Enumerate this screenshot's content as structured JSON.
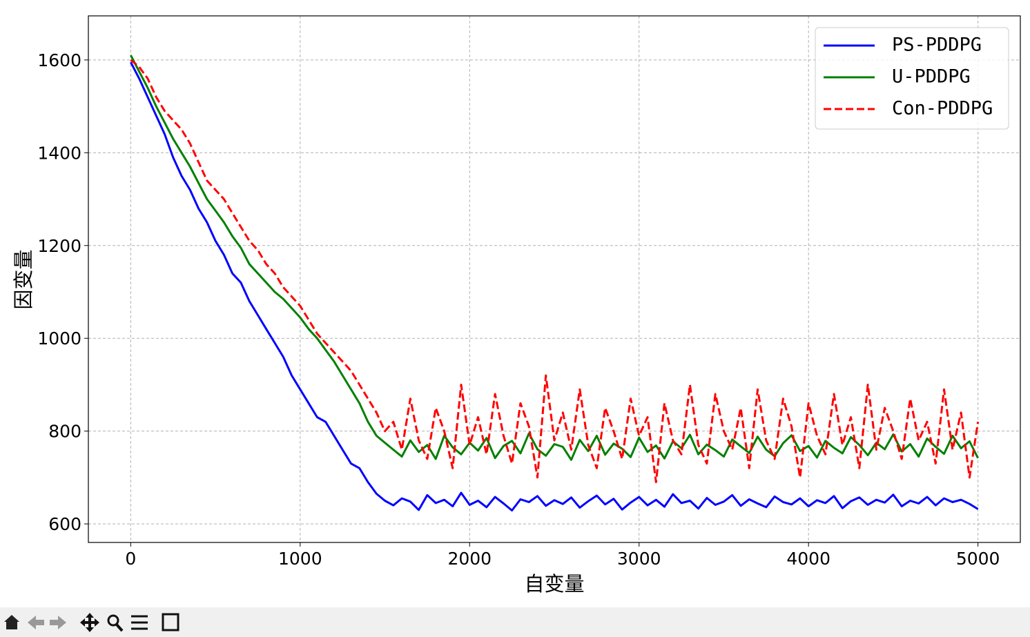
{
  "chart_data": {
    "type": "line",
    "xlabel": "自变量",
    "ylabel": "因变量",
    "x": [
      0,
      50,
      100,
      150,
      200,
      250,
      300,
      350,
      400,
      450,
      500,
      550,
      600,
      650,
      700,
      750,
      800,
      850,
      900,
      950,
      1000,
      1050,
      1100,
      1150,
      1200,
      1250,
      1300,
      1350,
      1400,
      1450,
      1500,
      1550,
      1600,
      1650,
      1700,
      1750,
      1800,
      1850,
      1900,
      1950,
      2000,
      2050,
      2100,
      2150,
      2200,
      2250,
      2300,
      2350,
      2400,
      2450,
      2500,
      2550,
      2600,
      2650,
      2700,
      2750,
      2800,
      2850,
      2900,
      2950,
      3000,
      3050,
      3100,
      3150,
      3200,
      3250,
      3300,
      3350,
      3400,
      3450,
      3500,
      3550,
      3600,
      3650,
      3700,
      3750,
      3800,
      3850,
      3900,
      3950,
      4000,
      4050,
      4100,
      4150,
      4200,
      4250,
      4300,
      4350,
      4400,
      4450,
      4500,
      4550,
      4600,
      4650,
      4700,
      4750,
      4800,
      4850,
      4900,
      4950,
      5000
    ],
    "series": [
      {
        "name": "PS-PDDPG",
        "color": "#0000ff",
        "dash": false,
        "values": [
          1595,
          1560,
          1520,
          1480,
          1440,
          1390,
          1350,
          1320,
          1280,
          1250,
          1210,
          1180,
          1140,
          1120,
          1080,
          1050,
          1020,
          990,
          960,
          920,
          890,
          860,
          830,
          820,
          790,
          760,
          730,
          720,
          690,
          665,
          650,
          640,
          655,
          648,
          630,
          662,
          645,
          652,
          638,
          667,
          641,
          650,
          636,
          658,
          644,
          629,
          653,
          647,
          660,
          639,
          651,
          643,
          657,
          635,
          649,
          661,
          642,
          654,
          631,
          646,
          658,
          640,
          652,
          637,
          664,
          645,
          650,
          633,
          656,
          641,
          648,
          662,
          639,
          653,
          644,
          636,
          659,
          647,
          642,
          655,
          638,
          651,
          645,
          660,
          634,
          649,
          657,
          641,
          652,
          646,
          663,
          638,
          650,
          644,
          658,
          640,
          655,
          647,
          652,
          643,
          632
        ]
      },
      {
        "name": "U-PDDPG",
        "color": "#008000",
        "dash": false,
        "values": [
          1610,
          1575,
          1540,
          1500,
          1465,
          1430,
          1400,
          1370,
          1335,
          1300,
          1275,
          1250,
          1220,
          1195,
          1160,
          1140,
          1120,
          1100,
          1085,
          1065,
          1045,
          1020,
          1000,
          975,
          950,
          920,
          890,
          860,
          820,
          790,
          775,
          760,
          745,
          780,
          755,
          770,
          740,
          790,
          765,
          750,
          775,
          758,
          785,
          742,
          768,
          779,
          752,
          795,
          761,
          747,
          772,
          766,
          738,
          781,
          757,
          790,
          749,
          773,
          762,
          744,
          786,
          755,
          769,
          741,
          778,
          763,
          792,
          750,
          771,
          759,
          745,
          782,
          767,
          753,
          788,
          760,
          746,
          774,
          791,
          757,
          768,
          743,
          779,
          764,
          752,
          787,
          770,
          748,
          775,
          761,
          793,
          756,
          772,
          745,
          784,
          766,
          751,
          790,
          763,
          778,
          742
        ]
      },
      {
        "name": "Con-PDDPG",
        "color": "#ff0000",
        "dash": true,
        "values": [
          1600,
          1585,
          1560,
          1520,
          1490,
          1470,
          1450,
          1420,
          1380,
          1340,
          1320,
          1300,
          1270,
          1240,
          1210,
          1190,
          1160,
          1140,
          1110,
          1090,
          1070,
          1040,
          1010,
          990,
          970,
          950,
          930,
          900,
          870,
          840,
          800,
          820,
          760,
          870,
          780,
          740,
          850,
          800,
          720,
          900,
          770,
          830,
          750,
          880,
          790,
          730,
          860,
          810,
          700,
          920,
          780,
          840,
          760,
          890,
          770,
          720,
          850,
          800,
          740,
          870,
          790,
          830,
          690,
          860,
          780,
          750,
          900,
          770,
          730,
          880,
          800,
          760,
          850,
          720,
          890,
          780,
          740,
          870,
          810,
          700,
          860,
          790,
          750,
          880,
          770,
          830,
          720,
          900,
          760,
          850,
          800,
          740,
          870,
          780,
          820,
          730,
          890,
          760,
          840,
          700,
          820
        ]
      }
    ],
    "xlim": [
      -250,
      5250
    ],
    "ylim": [
      560,
      1695
    ],
    "xticks": [
      0,
      1000,
      2000,
      3000,
      4000,
      5000
    ],
    "yticks": [
      600,
      800,
      1000,
      1200,
      1400,
      1600
    ],
    "grid": true,
    "legend": "upper right"
  }
}
